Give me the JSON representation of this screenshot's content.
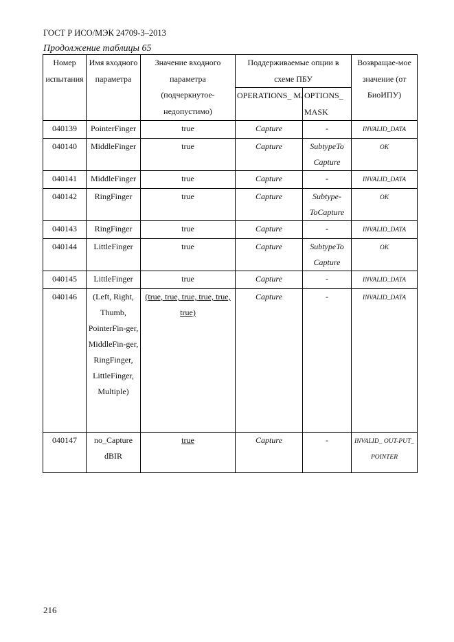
{
  "header": {
    "doc_id": "ГОСТ Р ИСО/МЭК 24709-3–2013",
    "caption": "Продолжение таблицы 65"
  },
  "table": {
    "headers": {
      "test_number": "Номер испытания",
      "param_name": "Имя входного параметра",
      "param_value": "Значение входного параметра (подчеркнутое-недопустимо)",
      "supported_options": "Поддерживаемые опции в схеме ПБУ",
      "operations_mask": "OPERATIONS_ MASK",
      "options_mask": "OPTIONS_ MASK",
      "return_value": "Возвращае-мое значение (от БиоИПУ)"
    },
    "rows": [
      {
        "num": "040139",
        "name": "PointerFinger",
        "value": "true",
        "ops": "Capture",
        "opts": "-",
        "ret": "INVALID_DATA"
      },
      {
        "num": "040140",
        "name": "MiddleFinger",
        "value": "true",
        "ops": "Capture",
        "opts": "SubtypeTo Capture",
        "ret": "OK"
      },
      {
        "num": "040141",
        "name": "MiddleFinger",
        "value": "true",
        "ops": "Capture",
        "opts": "-",
        "ret": "INVALID_DATA"
      },
      {
        "num": "040142",
        "name": "RingFinger",
        "value": "true",
        "ops": "Capture",
        "opts": "Subtype-ToCapture",
        "ret": "OK"
      },
      {
        "num": "040143",
        "name": "RingFinger",
        "value": "true",
        "ops": "Capture",
        "opts": "-",
        "ret": "INVALID_DATA"
      },
      {
        "num": "040144",
        "name": "LittleFinger",
        "value": "true",
        "ops": "Capture",
        "opts": "SubtypeTo Capture",
        "ret": "OK"
      },
      {
        "num": "040145",
        "name": "LittleFinger",
        "value": "true",
        "ops": "Capture",
        "opts": "-",
        "ret": "INVALID_DATA"
      },
      {
        "num": "040146",
        "name": "(Left, Right, Thumb, PointerFin-ger, MiddleFin-ger, RingFinger, LittleFinger, Multiple)",
        "value": "(true, true, true, true, true, true)",
        "underlined": true,
        "ops": "Capture",
        "opts": "-",
        "ret": "INVALID_DATA"
      },
      {
        "num": "040147",
        "name": "no_Capture dBIR",
        "value": "true",
        "underlined": true,
        "ops": "Capture",
        "opts": "-",
        "ret": "INVALID_ OUT-PUT_ POINTER"
      }
    ]
  },
  "footer": {
    "page_number": "216"
  }
}
